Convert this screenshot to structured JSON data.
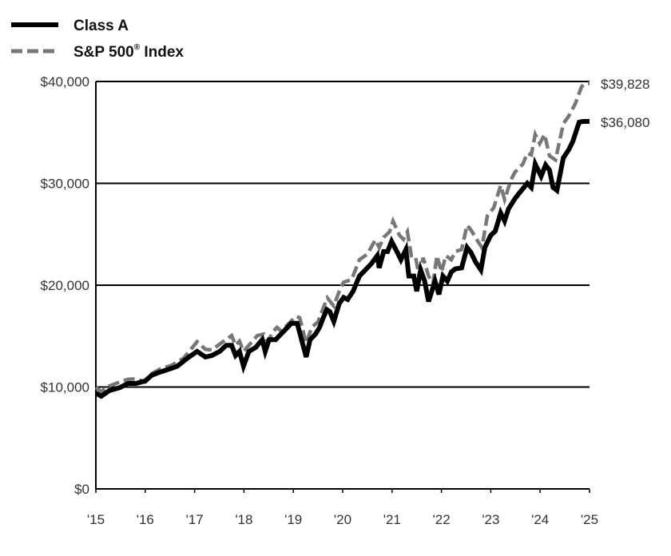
{
  "chart_data": {
    "type": "line",
    "title": "",
    "xlabel": "",
    "ylabel": "",
    "xlim": [
      2015,
      2025
    ],
    "ylim": [
      0,
      40000
    ],
    "grid": "horizontal",
    "legend_placement": "top-left",
    "x_tick_labels": [
      "'15",
      "'16",
      "'17",
      "'18",
      "'19",
      "'20",
      "'21",
      "'22",
      "'23",
      "'24",
      "'25"
    ],
    "y_ticks": [
      0,
      10000,
      20000,
      30000,
      40000
    ],
    "y_tick_labels": [
      "$0",
      "$10,000",
      "$20,000",
      "$30,000",
      "$40,000"
    ],
    "series": [
      {
        "name": "Class A",
        "name_superscript": "",
        "color": "#000000",
        "style": "solid",
        "end_label": "$36,080",
        "points": [
          [
            2015.0,
            9400
          ],
          [
            2015.11,
            9100
          ],
          [
            2015.27,
            9650
          ],
          [
            2015.49,
            9950
          ],
          [
            2015.65,
            10350
          ],
          [
            2015.81,
            10350
          ],
          [
            2016.0,
            10600
          ],
          [
            2016.13,
            11150
          ],
          [
            2016.29,
            11450
          ],
          [
            2016.54,
            11850
          ],
          [
            2016.65,
            12050
          ],
          [
            2016.86,
            12850
          ],
          [
            2017.05,
            13500
          ],
          [
            2017.22,
            12950
          ],
          [
            2017.35,
            13100
          ],
          [
            2017.51,
            13500
          ],
          [
            2017.64,
            14100
          ],
          [
            2017.75,
            14100
          ],
          [
            2017.83,
            13100
          ],
          [
            2017.91,
            13500
          ],
          [
            2017.99,
            12050
          ],
          [
            2018.1,
            13500
          ],
          [
            2018.24,
            13900
          ],
          [
            2018.37,
            14650
          ],
          [
            2018.43,
            13500
          ],
          [
            2018.51,
            14650
          ],
          [
            2018.64,
            14650
          ],
          [
            2018.72,
            15050
          ],
          [
            2018.83,
            15600
          ],
          [
            2018.96,
            16250
          ],
          [
            2019.08,
            16250
          ],
          [
            2019.26,
            12950
          ],
          [
            2019.34,
            14650
          ],
          [
            2019.45,
            15200
          ],
          [
            2019.53,
            15850
          ],
          [
            2019.61,
            16850
          ],
          [
            2019.68,
            17600
          ],
          [
            2019.74,
            17400
          ],
          [
            2019.82,
            16450
          ],
          [
            2019.93,
            18200
          ],
          [
            2020.02,
            18800
          ],
          [
            2020.1,
            18600
          ],
          [
            2020.21,
            19400
          ],
          [
            2020.34,
            20900
          ],
          [
            2020.42,
            21300
          ],
          [
            2020.58,
            22100
          ],
          [
            2020.7,
            22900
          ],
          [
            2020.74,
            21700
          ],
          [
            2020.83,
            23300
          ],
          [
            2020.91,
            23300
          ],
          [
            2020.99,
            24300
          ],
          [
            2021.12,
            23100
          ],
          [
            2021.18,
            22500
          ],
          [
            2021.28,
            23500
          ],
          [
            2021.34,
            20900
          ],
          [
            2021.44,
            20900
          ],
          [
            2021.5,
            19400
          ],
          [
            2021.58,
            21500
          ],
          [
            2021.66,
            20400
          ],
          [
            2021.74,
            18400
          ],
          [
            2021.87,
            20400
          ],
          [
            2021.95,
            19100
          ],
          [
            2022.03,
            20900
          ],
          [
            2022.12,
            20400
          ],
          [
            2022.2,
            21300
          ],
          [
            2022.28,
            21600
          ],
          [
            2022.41,
            21700
          ],
          [
            2022.52,
            23700
          ],
          [
            2022.6,
            23200
          ],
          [
            2022.69,
            22300
          ],
          [
            2022.8,
            21500
          ],
          [
            2022.88,
            23700
          ],
          [
            2023.0,
            24900
          ],
          [
            2023.09,
            25300
          ],
          [
            2023.2,
            27100
          ],
          [
            2023.28,
            26300
          ],
          [
            2023.36,
            27500
          ],
          [
            2023.49,
            28500
          ],
          [
            2023.57,
            29000
          ],
          [
            2023.74,
            30000
          ],
          [
            2023.82,
            29600
          ],
          [
            2023.9,
            31900
          ],
          [
            2024.02,
            30700
          ],
          [
            2024.11,
            31800
          ],
          [
            2024.19,
            31300
          ],
          [
            2024.26,
            29600
          ],
          [
            2024.34,
            29300
          ],
          [
            2024.47,
            32500
          ],
          [
            2024.58,
            33300
          ],
          [
            2024.66,
            34100
          ],
          [
            2024.79,
            36000
          ],
          [
            2024.87,
            36080
          ],
          [
            2025.0,
            36080
          ]
        ]
      },
      {
        "name": "S&P 500",
        "name_superscript": "®",
        "name_suffix": " Index",
        "color": "#777777",
        "style": "dashed",
        "end_label": "$39,828",
        "points": [
          [
            2015.0,
            9950
          ],
          [
            2015.11,
            9550
          ],
          [
            2015.27,
            10100
          ],
          [
            2015.49,
            10500
          ],
          [
            2015.65,
            10750
          ],
          [
            2015.81,
            10800
          ],
          [
            2016.0,
            10500
          ],
          [
            2016.13,
            11300
          ],
          [
            2016.29,
            11750
          ],
          [
            2016.54,
            12150
          ],
          [
            2016.78,
            12850
          ],
          [
            2017.05,
            14450
          ],
          [
            2017.22,
            13700
          ],
          [
            2017.35,
            13650
          ],
          [
            2017.59,
            14500
          ],
          [
            2017.75,
            15050
          ],
          [
            2017.83,
            14100
          ],
          [
            2017.91,
            14500
          ],
          [
            2017.99,
            13500
          ],
          [
            2018.1,
            14100
          ],
          [
            2018.27,
            15050
          ],
          [
            2018.4,
            15200
          ],
          [
            2018.48,
            14450
          ],
          [
            2018.59,
            15450
          ],
          [
            2018.67,
            15850
          ],
          [
            2018.75,
            15500
          ],
          [
            2018.88,
            16100
          ],
          [
            2019.05,
            16950
          ],
          [
            2019.13,
            16800
          ],
          [
            2019.26,
            14300
          ],
          [
            2019.37,
            15850
          ],
          [
            2019.5,
            16400
          ],
          [
            2019.61,
            17800
          ],
          [
            2019.69,
            18750
          ],
          [
            2019.82,
            17950
          ],
          [
            2019.93,
            19400
          ],
          [
            2020.02,
            20300
          ],
          [
            2020.18,
            20550
          ],
          [
            2020.34,
            22500
          ],
          [
            2020.5,
            23050
          ],
          [
            2020.66,
            24450
          ],
          [
            2020.74,
            23700
          ],
          [
            2020.83,
            24700
          ],
          [
            2020.95,
            25250
          ],
          [
            2021.02,
            26300
          ],
          [
            2021.15,
            24900
          ],
          [
            2021.23,
            24500
          ],
          [
            2021.31,
            25250
          ],
          [
            2021.39,
            22900
          ],
          [
            2021.47,
            22900
          ],
          [
            2021.55,
            20900
          ],
          [
            2021.63,
            22700
          ],
          [
            2021.74,
            20900
          ],
          [
            2021.83,
            20150
          ],
          [
            2021.91,
            22900
          ],
          [
            2022.0,
            21300
          ],
          [
            2022.09,
            22900
          ],
          [
            2022.2,
            22500
          ],
          [
            2022.28,
            23300
          ],
          [
            2022.41,
            23500
          ],
          [
            2022.52,
            25900
          ],
          [
            2022.6,
            25400
          ],
          [
            2022.72,
            24450
          ],
          [
            2022.82,
            23700
          ],
          [
            2022.93,
            26800
          ],
          [
            2023.06,
            27600
          ],
          [
            2023.2,
            29800
          ],
          [
            2023.28,
            28400
          ],
          [
            2023.41,
            30350
          ],
          [
            2023.49,
            31100
          ],
          [
            2023.65,
            31900
          ],
          [
            2023.74,
            32950
          ],
          [
            2023.82,
            32800
          ],
          [
            2023.9,
            34800
          ],
          [
            2023.99,
            33900
          ],
          [
            2024.09,
            34800
          ],
          [
            2024.19,
            32700
          ],
          [
            2024.31,
            32300
          ],
          [
            2024.47,
            35850
          ],
          [
            2024.58,
            36600
          ],
          [
            2024.71,
            37800
          ],
          [
            2024.84,
            39500
          ],
          [
            2024.92,
            39800
          ],
          [
            2025.0,
            39828
          ]
        ]
      }
    ]
  }
}
